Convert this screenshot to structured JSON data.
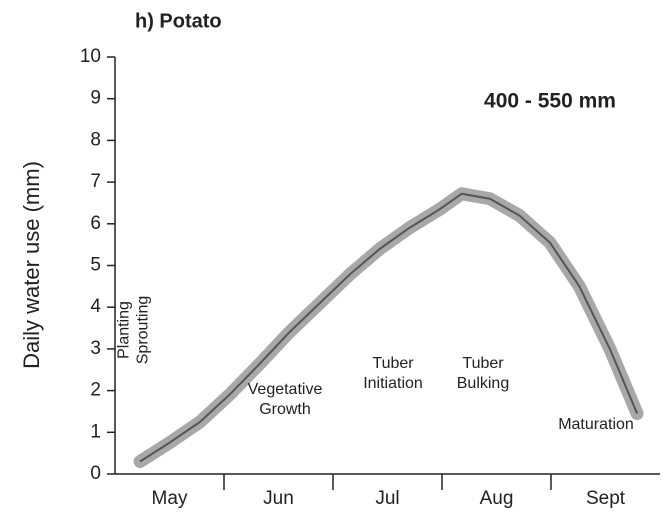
{
  "chart_data": {
    "type": "line",
    "title": "h) Potato",
    "ylabel": "Daily water use (mm)",
    "categories": [
      "May",
      "Jun",
      "Jul",
      "Aug",
      "Sept"
    ],
    "xlim": [
      0,
      5
    ],
    "ylim": [
      0,
      10
    ],
    "yticks": [
      0,
      1,
      2,
      3,
      4,
      5,
      6,
      7,
      8,
      9,
      10
    ],
    "series": [
      {
        "color": "#555555",
        "band_color": "#a8a8a8",
        "x": [
          0.23,
          0.5,
          0.78,
          1.05,
          1.33,
          1.6,
          1.88,
          2.16,
          2.43,
          2.7,
          2.98,
          3.18,
          3.44,
          3.71,
          3.99,
          4.26,
          4.54,
          4.79
        ],
        "values": [
          0.3,
          0.75,
          1.25,
          1.9,
          2.65,
          3.4,
          4.1,
          4.8,
          5.4,
          5.9,
          6.35,
          6.72,
          6.6,
          6.2,
          5.55,
          4.5,
          3.0,
          1.45
        ]
      }
    ],
    "annotations": [
      {
        "lines": [
          "400 - 550 mm"
        ]
      },
      {
        "lines": [
          "Planting",
          "Sprouting"
        ]
      },
      {
        "lines": [
          "Vegetative",
          "Growth"
        ]
      },
      {
        "lines": [
          "Tuber",
          "Initiation"
        ]
      },
      {
        "lines": [
          "Tuber",
          "Bulking"
        ]
      },
      {
        "lines": [
          "Maturation"
        ]
      }
    ]
  }
}
